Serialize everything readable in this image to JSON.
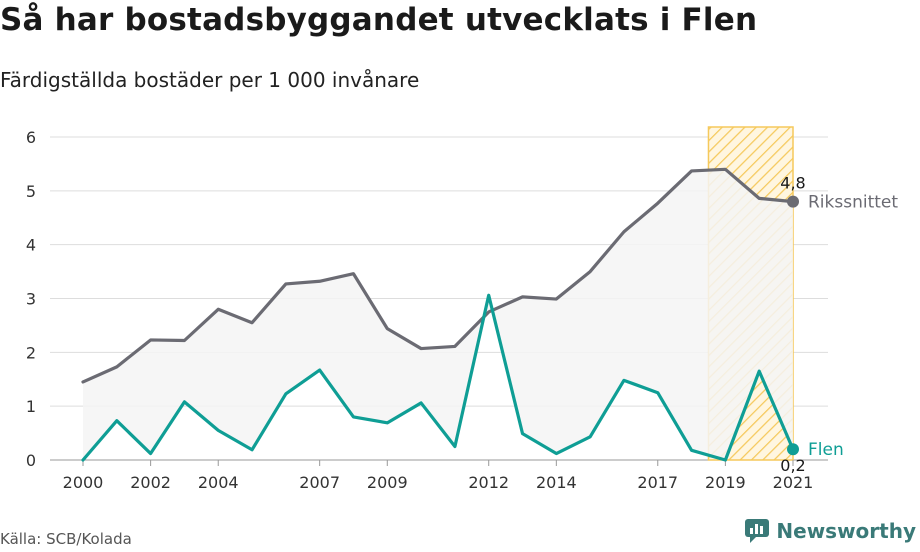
{
  "header": {
    "title": "Så har bostadsbyggandet utvecklats i Flen",
    "subtitle": "Färdigställda bostäder per 1 000 invånare"
  },
  "footer": {
    "source": "Källa: SCB/Kolada",
    "brand": "Newsworthy"
  },
  "colors": {
    "national": "#6b6b73",
    "local": "#0f9e95",
    "highlight": "#f5c95c",
    "grid": "#dddddd",
    "band_fill": "#f4f4f4"
  },
  "chart_data": {
    "type": "line",
    "x": [
      2000,
      2001,
      2002,
      2003,
      2004,
      2005,
      2006,
      2007,
      2008,
      2009,
      2010,
      2011,
      2012,
      2013,
      2014,
      2015,
      2016,
      2017,
      2018,
      2019,
      2020,
      2021
    ],
    "xticks": [
      "2000",
      "2002",
      "2004",
      "2007",
      "2009",
      "2012",
      "2014",
      "2017",
      "2019",
      "2021"
    ],
    "yticks": [
      "0",
      "1",
      "2",
      "3",
      "4",
      "5",
      "6"
    ],
    "ylim": [
      0,
      6
    ],
    "xlim": [
      2000,
      2021
    ],
    "grid": "horizontal",
    "highlight_range": [
      2018.5,
      2021
    ],
    "series": [
      {
        "name": "Rikssnittet",
        "color": "#6b6b73",
        "values": [
          1.45,
          1.73,
          2.23,
          2.22,
          2.8,
          2.55,
          3.27,
          3.32,
          3.46,
          2.44,
          2.07,
          2.11,
          2.75,
          3.03,
          2.99,
          3.5,
          4.24,
          4.77,
          5.37,
          5.4,
          4.86,
          4.8
        ],
        "end_label": "4,8"
      },
      {
        "name": "Flen",
        "color": "#0f9e95",
        "values": [
          0.0,
          0.73,
          0.12,
          1.08,
          0.55,
          0.19,
          1.23,
          1.67,
          0.8,
          0.69,
          1.06,
          0.25,
          3.06,
          0.49,
          0.12,
          0.43,
          1.48,
          1.25,
          0.18,
          0.0,
          1.65,
          0.2
        ],
        "end_label": "0,2"
      }
    ]
  }
}
